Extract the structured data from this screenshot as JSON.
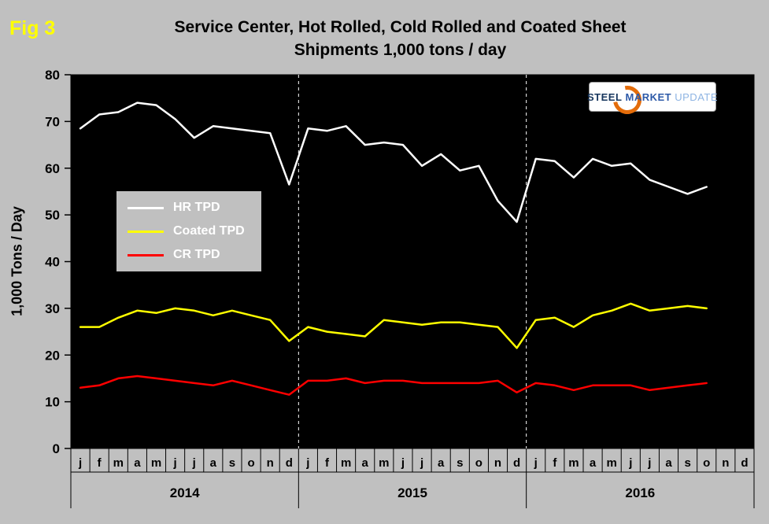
{
  "header": {
    "fig_label": "Fig 3",
    "title_line1": "Service Center, Hot Rolled, Cold Rolled and Coated Sheet",
    "title_line2": "Shipments 1,000 tons / day"
  },
  "logo": {
    "steel": "STEEL",
    "market": "MARKET",
    "update": "UPDATE"
  },
  "colors": {
    "background": "#c0c0c0",
    "plot_background": "#000000",
    "fig_label": "#ffff00",
    "axis_text": "#000000",
    "legend_text": "#ffffff",
    "year_separator_dash": "#ffffff"
  },
  "chart_data": {
    "type": "line",
    "title": "Service Center, Hot Rolled, Cold Rolled and Coated Sheet Shipments 1,000 tons / day",
    "ylabel": "1,000 Tons / Day",
    "ylim": [
      0,
      80
    ],
    "ytick_step": 10,
    "grid": "off",
    "legend_position": "inside-left",
    "month_labels": [
      "j",
      "f",
      "m",
      "a",
      "m",
      "j",
      "j",
      "a",
      "s",
      "o",
      "n",
      "d",
      "j",
      "f",
      "m",
      "a",
      "m",
      "j",
      "j",
      "a",
      "s",
      "o",
      "n",
      "d",
      "j",
      "f",
      "m",
      "a",
      "m",
      "j",
      "j",
      "a",
      "s",
      "o",
      "n",
      "d"
    ],
    "year_labels": [
      "2014",
      "2015",
      "2016"
    ],
    "separators_after": [
      11,
      23
    ],
    "series": [
      {
        "name": "HR TPD",
        "color": "#ffffff",
        "values": [
          68.5,
          71.5,
          72,
          74,
          73.5,
          70.5,
          66.5,
          69,
          68.5,
          68,
          67.5,
          56.5,
          68.5,
          68,
          69,
          65,
          65.5,
          65,
          60.5,
          63,
          59.5,
          60.5,
          53,
          48.5,
          62,
          61.5,
          58,
          62,
          60.5,
          61,
          57.5,
          56,
          54.5,
          56
        ]
      },
      {
        "name": "Coated TPD",
        "color": "#ffff00",
        "values": [
          26,
          26,
          28,
          29.5,
          29,
          30,
          29.5,
          28.5,
          29.5,
          28.5,
          27.5,
          23,
          26,
          25,
          24.5,
          24,
          27.5,
          27,
          26.5,
          27,
          27,
          26.5,
          26,
          21.5,
          27.5,
          28,
          26,
          28.5,
          29.5,
          31,
          29.5,
          30,
          30.5,
          30
        ]
      },
      {
        "name": "CR TPD",
        "color": "#ff0000",
        "values": [
          13,
          13.5,
          15,
          15.5,
          15,
          14.5,
          14,
          13.5,
          14.5,
          13.5,
          12.5,
          11.5,
          14.5,
          14.5,
          15,
          14,
          14.5,
          14.5,
          14,
          14,
          14,
          14,
          14.5,
          12,
          14,
          13.5,
          12.5,
          13.5,
          13.5,
          13.5,
          12.5,
          13,
          13.5,
          14
        ]
      }
    ]
  }
}
